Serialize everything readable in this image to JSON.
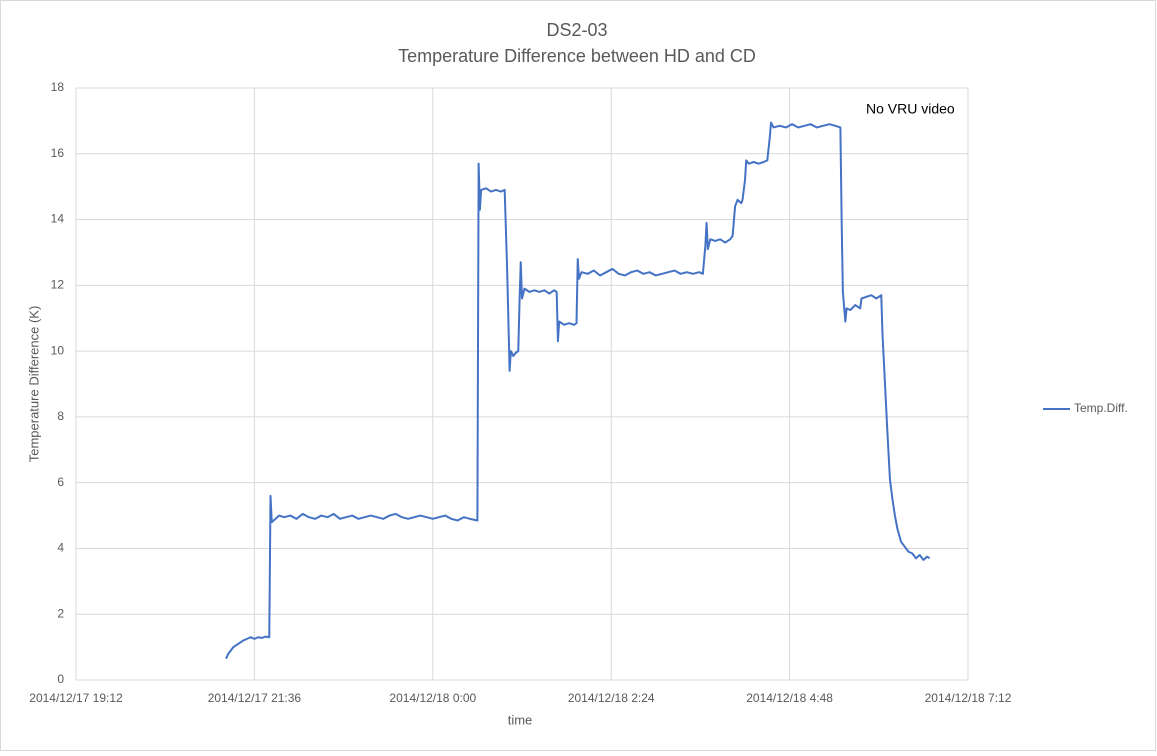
{
  "chart_data": {
    "type": "line",
    "title": "DS2-03",
    "subtitle": "Temperature Difference between HD and CD",
    "x_label": "time",
    "y_label": "Temperature Difference (K)",
    "annotation": "No VRU video",
    "legend": "right",
    "grid": true,
    "xlim": [
      "2014/12/17 19:12",
      "2014/12/18 7:12"
    ],
    "xticks": [
      "2014/12/17 19:12",
      "2014/12/17 21:36",
      "2014/12/18 0:00",
      "2014/12/18 2:24",
      "2014/12/18 4:48",
      "2014/12/18 7:12"
    ],
    "ylim": [
      0,
      18
    ],
    "yticks": [
      0,
      2,
      4,
      6,
      8,
      10,
      12,
      14,
      16,
      18
    ],
    "x": [
      "2014/12/17 21:13",
      "2014/12/17 21:15",
      "2014/12/17 21:17",
      "2014/12/17 21:19",
      "2014/12/17 21:21",
      "2014/12/17 21:23",
      "2014/12/17 21:25",
      "2014/12/17 21:27",
      "2014/12/17 21:30",
      "2014/12/17 21:33",
      "2014/12/17 21:36",
      "2014/12/17 21:39",
      "2014/12/17 21:42",
      "2014/12/17 21:45",
      "2014/12/17 21:48",
      "2014/12/17 21:49",
      "2014/12/17 21:50",
      "2014/12/17 21:53",
      "2014/12/17 21:56",
      "2014/12/17 22:00",
      "2014/12/17 22:05",
      "2014/12/17 22:10",
      "2014/12/17 22:15",
      "2014/12/17 22:20",
      "2014/12/17 22:25",
      "2014/12/17 22:30",
      "2014/12/17 22:35",
      "2014/12/17 22:40",
      "2014/12/17 22:45",
      "2014/12/17 22:50",
      "2014/12/17 22:55",
      "2014/12/17 23:00",
      "2014/12/17 23:05",
      "2014/12/17 23:10",
      "2014/12/17 23:15",
      "2014/12/17 23:20",
      "2014/12/17 23:25",
      "2014/12/17 23:30",
      "2014/12/17 23:35",
      "2014/12/17 23:40",
      "2014/12/17 23:45",
      "2014/12/17 23:50",
      "2014/12/17 23:55",
      "2014/12/18 0:00",
      "2014/12/18 0:05",
      "2014/12/18 0:10",
      "2014/12/18 0:15",
      "2014/12/18 0:20",
      "2014/12/18 0:25",
      "2014/12/18 0:30",
      "2014/12/18 0:36",
      "2014/12/18 0:37",
      "2014/12/18 0:38",
      "2014/12/18 0:39",
      "2014/12/18 0:43",
      "2014/12/18 0:47",
      "2014/12/18 0:51",
      "2014/12/18 0:55",
      "2014/12/18 0:58",
      "2014/12/18 1:00",
      "2014/12/18 1:02",
      "2014/12/18 1:03",
      "2014/12/18 1:05",
      "2014/12/18 1:07",
      "2014/12/18 1:09",
      "2014/12/18 1:10",
      "2014/12/18 1:11",
      "2014/12/18 1:12",
      "2014/12/18 1:14",
      "2014/12/18 1:18",
      "2014/12/18 1:22",
      "2014/12/18 1:26",
      "2014/12/18 1:30",
      "2014/12/18 1:34",
      "2014/12/18 1:38",
      "2014/12/18 1:40",
      "2014/12/18 1:41",
      "2014/12/18 1:42",
      "2014/12/18 1:46",
      "2014/12/18 1:50",
      "2014/12/18 1:54",
      "2014/12/18 1:56",
      "2014/12/18 1:57",
      "2014/12/18 1:58",
      "2014/12/18 2:00",
      "2014/12/18 2:05",
      "2014/12/18 2:10",
      "2014/12/18 2:15",
      "2014/12/18 2:20",
      "2014/12/18 2:25",
      "2014/12/18 2:30",
      "2014/12/18 2:35",
      "2014/12/18 2:40",
      "2014/12/18 2:45",
      "2014/12/18 2:50",
      "2014/12/18 2:55",
      "2014/12/18 3:00",
      "2014/12/18 3:05",
      "2014/12/18 3:10",
      "2014/12/18 3:15",
      "2014/12/18 3:20",
      "2014/12/18 3:25",
      "2014/12/18 3:30",
      "2014/12/18 3:35",
      "2014/12/18 3:38",
      "2014/12/18 3:40",
      "2014/12/18 3:41",
      "2014/12/18 3:42",
      "2014/12/18 3:44",
      "2014/12/18 3:48",
      "2014/12/18 3:52",
      "2014/12/18 3:56",
      "2014/12/18 4:00",
      "2014/12/18 4:02",
      "2014/12/18 4:04",
      "2014/12/18 4:06",
      "2014/12/18 4:09",
      "2014/12/18 4:10",
      "2014/12/18 4:12",
      "2014/12/18 4:13",
      "2014/12/18 4:15",
      "2014/12/18 4:19",
      "2014/12/18 4:23",
      "2014/12/18 4:27",
      "2014/12/18 4:30",
      "2014/12/18 4:32",
      "2014/12/18 4:33",
      "2014/12/18 4:35",
      "2014/12/18 4:40",
      "2014/12/18 4:45",
      "2014/12/18 4:50",
      "2014/12/18 4:55",
      "2014/12/18 5:00",
      "2014/12/18 5:05",
      "2014/12/18 5:10",
      "2014/12/18 5:15",
      "2014/12/18 5:20",
      "2014/12/18 5:25",
      "2014/12/18 5:29",
      "2014/12/18 5:30",
      "2014/12/18 5:31",
      "2014/12/18 5:33",
      "2014/12/18 5:34",
      "2014/12/18 5:37",
      "2014/12/18 5:41",
      "2014/12/18 5:45",
      "2014/12/18 5:46",
      "2014/12/18 5:50",
      "2014/12/18 5:54",
      "2014/12/18 5:58",
      "2014/12/18 6:02",
      "2014/12/18 6:03",
      "2014/12/18 6:05",
      "2014/12/18 6:07",
      "2014/12/18 6:09",
      "2014/12/18 6:11",
      "2014/12/18 6:13",
      "2014/12/18 6:15",
      "2014/12/18 6:18",
      "2014/12/18 6:21",
      "2014/12/18 6:24",
      "2014/12/18 6:27",
      "2014/12/18 6:30",
      "2014/12/18 6:33",
      "2014/12/18 6:36",
      "2014/12/18 6:39",
      "2014/12/18 6:41"
    ],
    "series": [
      {
        "name": "Temp.Diff.",
        "color": "#4472c4",
        "values": [
          0.65,
          0.8,
          0.9,
          1.0,
          1.05,
          1.1,
          1.15,
          1.2,
          1.25,
          1.3,
          1.25,
          1.3,
          1.28,
          1.32,
          1.3,
          5.6,
          4.8,
          4.9,
          5.0,
          4.95,
          5.0,
          4.9,
          5.05,
          4.95,
          4.9,
          5.0,
          4.95,
          5.05,
          4.9,
          4.95,
          5.0,
          4.9,
          4.95,
          5.0,
          4.95,
          4.9,
          5.0,
          5.05,
          4.95,
          4.9,
          4.95,
          5.0,
          4.95,
          4.9,
          4.95,
          5.0,
          4.9,
          4.85,
          4.95,
          4.9,
          4.85,
          15.7,
          14.3,
          14.9,
          14.95,
          14.85,
          14.9,
          14.85,
          14.9,
          12.5,
          9.4,
          10.0,
          9.85,
          9.95,
          10.0,
          11.5,
          12.7,
          11.6,
          11.9,
          11.8,
          11.85,
          11.8,
          11.85,
          11.75,
          11.85,
          11.8,
          10.3,
          10.9,
          10.8,
          10.85,
          10.8,
          10.85,
          12.8,
          12.2,
          12.4,
          12.35,
          12.45,
          12.3,
          12.4,
          12.5,
          12.35,
          12.3,
          12.4,
          12.45,
          12.35,
          12.4,
          12.3,
          12.35,
          12.4,
          12.45,
          12.35,
          12.4,
          12.35,
          12.4,
          12.35,
          13.2,
          13.9,
          13.1,
          13.4,
          13.35,
          13.4,
          13.3,
          13.4,
          13.5,
          14.4,
          14.6,
          14.5,
          14.6,
          15.2,
          15.8,
          15.7,
          15.75,
          15.7,
          15.75,
          15.8,
          16.5,
          16.95,
          16.8,
          16.85,
          16.8,
          16.9,
          16.8,
          16.85,
          16.9,
          16.8,
          16.85,
          16.9,
          16.85,
          16.8,
          14.0,
          11.8,
          10.9,
          11.3,
          11.25,
          11.4,
          11.3,
          11.6,
          11.65,
          11.7,
          11.6,
          11.7,
          10.5,
          9.0,
          7.5,
          6.1,
          5.5,
          5.0,
          4.6,
          4.2,
          4.05,
          3.9,
          3.85,
          3.7,
          3.8,
          3.65,
          3.75,
          3.7
        ]
      }
    ]
  }
}
